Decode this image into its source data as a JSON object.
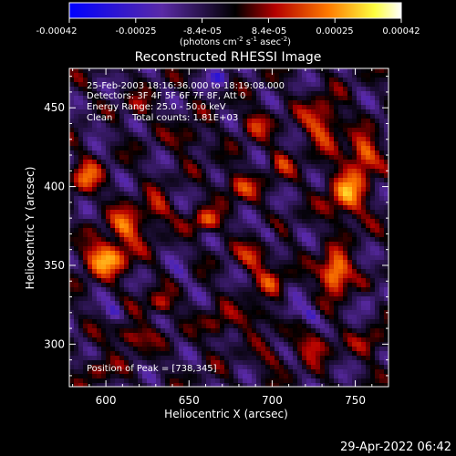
{
  "colorbar": {
    "tick_labels": [
      "-0.00042",
      "-0.00025",
      "-8.4e-05",
      "8.4e-05",
      "0.00025",
      "0.00042"
    ],
    "unit_main": "(photons cm",
    "unit_sup1": "-2",
    "unit_mid": " s",
    "unit_sup2": "-1",
    "unit_end": " asec",
    "unit_sup3": "-2",
    "unit_close": ")",
    "colors": [
      "#0000ff",
      "#5a2aa6",
      "#000000",
      "#b40000",
      "#ff7a00",
      "#ffff40",
      "#ffffff"
    ]
  },
  "annotations": {
    "time": "25-Feb-2003 18:16:36.000 to 18:19:08.000",
    "detectors": "Detectors: 3F 4F 5F 6F 7F 8F, Att 0",
    "energy": "Energy Range: 25.0 - 50.0 keV",
    "clean": "Clean",
    "counts": "Total counts: 1.81E+03",
    "peak": "Position of Peak = [738,345]"
  },
  "footer": {
    "timestamp": "29-Apr-2022 06:42"
  },
  "chart_data": {
    "type": "heatmap",
    "title": "Reconstructed RHESSI Image",
    "xlabel": "Heliocentric X (arcsec)",
    "ylabel": "Heliocentric Y (arcsec)",
    "xlim": [
      578,
      770
    ],
    "ylim": [
      273,
      475
    ],
    "xticks": [
      600,
      650,
      700,
      750
    ],
    "yticks": [
      300,
      350,
      400,
      450
    ],
    "color_range": [
      -0.00042,
      0.00042
    ],
    "peak": {
      "x": 738,
      "y": 345
    },
    "blobs": [
      {
        "x": 738,
        "y": 345,
        "sx": 6,
        "sy": 8,
        "v": 0.00042
      },
      {
        "x": 745,
        "y": 395,
        "sx": 8,
        "sy": 12,
        "v": 0.00028
      },
      {
        "x": 730,
        "y": 440,
        "sx": 8,
        "sy": 10,
        "v": 0.00024
      },
      {
        "x": 755,
        "y": 420,
        "sx": 6,
        "sy": 8,
        "v": 0.0003
      },
      {
        "x": 600,
        "y": 355,
        "sx": 10,
        "sy": 8,
        "v": 0.00032
      },
      {
        "x": 612,
        "y": 375,
        "sx": 7,
        "sy": 7,
        "v": 0.00027
      },
      {
        "x": 588,
        "y": 405,
        "sx": 6,
        "sy": 8,
        "v": 0.00024
      },
      {
        "x": 630,
        "y": 385,
        "sx": 6,
        "sy": 6,
        "v": 0.0002
      },
      {
        "x": 660,
        "y": 378,
        "sx": 6,
        "sy": 5,
        "v": 0.00023
      },
      {
        "x": 680,
        "y": 400,
        "sx": 8,
        "sy": 6,
        "v": 0.00018
      },
      {
        "x": 690,
        "y": 355,
        "sx": 7,
        "sy": 6,
        "v": 0.0002
      },
      {
        "x": 700,
        "y": 340,
        "sx": 6,
        "sy": 6,
        "v": 0.00016
      },
      {
        "x": 615,
        "y": 305,
        "sx": 8,
        "sy": 5,
        "v": 0.00021
      },
      {
        "x": 633,
        "y": 325,
        "sx": 6,
        "sy": 5,
        "v": 0.00018
      },
      {
        "x": 668,
        "y": 312,
        "sx": 6,
        "sy": 6,
        "v": 0.00015
      },
      {
        "x": 690,
        "y": 318,
        "sx": 7,
        "sy": 5,
        "v": 0.00017
      },
      {
        "x": 725,
        "y": 300,
        "sx": 7,
        "sy": 6,
        "v": 0.0002
      },
      {
        "x": 760,
        "y": 300,
        "sx": 6,
        "sy": 6,
        "v": 0.00015
      },
      {
        "x": 595,
        "y": 285,
        "sx": 6,
        "sy": 5,
        "v": 0.00014
      },
      {
        "x": 700,
        "y": 290,
        "sx": 6,
        "sy": 5,
        "v": 0.00012
      },
      {
        "x": 650,
        "y": 430,
        "sx": 6,
        "sy": 5,
        "v": 0.00016
      },
      {
        "x": 690,
        "y": 440,
        "sx": 6,
        "sy": 6,
        "v": 0.00017
      },
      {
        "x": 705,
        "y": 415,
        "sx": 5,
        "sy": 6,
        "v": 0.00015
      },
      {
        "x": 620,
        "y": 450,
        "sx": 6,
        "sy": 5,
        "v": 0.00012
      },
      {
        "x": 645,
        "y": 345,
        "sx": 5,
        "sy": 5,
        "v": -0.0001
      },
      {
        "x": 605,
        "y": 320,
        "sx": 4,
        "sy": 4,
        "v": -0.00018
      },
      {
        "x": 723,
        "y": 318,
        "sx": 4,
        "sy": 4,
        "v": -0.00016
      },
      {
        "x": 712,
        "y": 320,
        "sx": 4,
        "sy": 4,
        "v": -0.00015
      },
      {
        "x": 698,
        "y": 370,
        "sx": 4,
        "sy": 4,
        "v": -0.00014
      },
      {
        "x": 668,
        "y": 470,
        "sx": 4,
        "sy": 4,
        "v": -0.00018
      },
      {
        "x": 585,
        "y": 380,
        "sx": 4,
        "sy": 4,
        "v": -0.00012
      },
      {
        "x": 595,
        "y": 440,
        "sx": 4,
        "sy": 4,
        "v": -0.0001
      },
      {
        "x": 760,
        "y": 330,
        "sx": 4,
        "sy": 4,
        "v": -0.00012
      }
    ]
  }
}
